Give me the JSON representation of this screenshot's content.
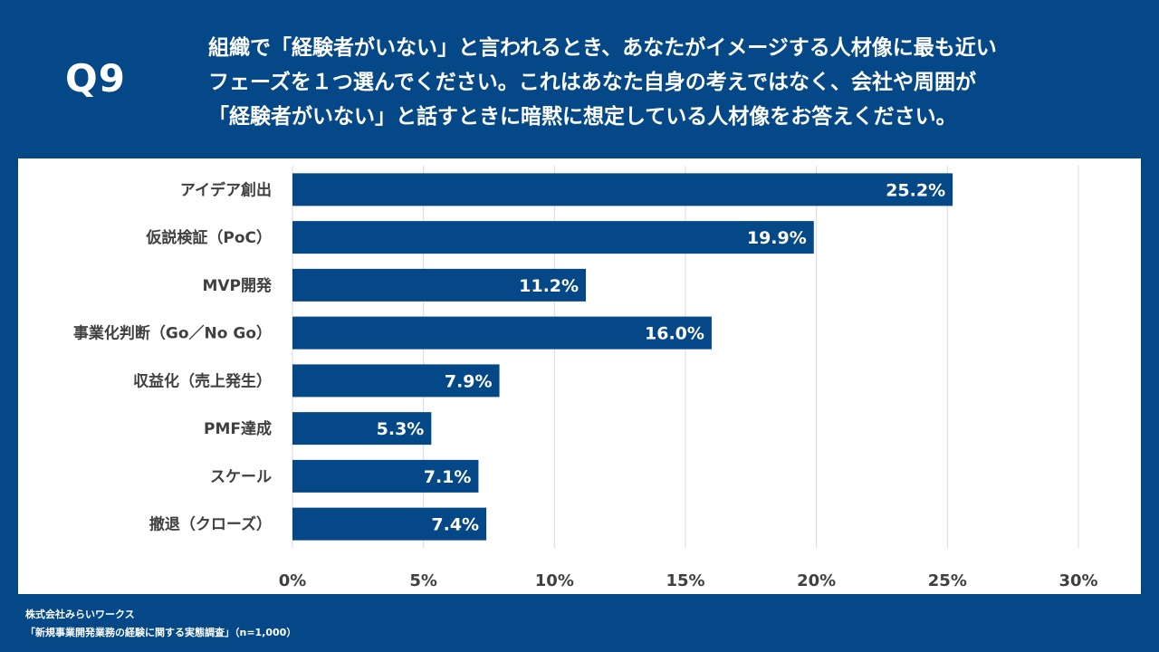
{
  "header": {
    "question_label": "Q9",
    "question_lines": [
      "組織で「経験者がいない」と言われるとき、あなたがイメージする人材像に最も近い",
      "フェーズを１つ選んでください。これはあなた自身の考えではなく、会社や周囲が",
      "「経験者がいない」と話すときに暗黙に想定している人材像をお答えください。"
    ]
  },
  "colors": {
    "background": "#044887",
    "bar": "#044887",
    "panel": "#ffffff",
    "gridline": "#d9d9d9",
    "axis_text": "#404040",
    "bar_label": "#ffffff"
  },
  "footer": {
    "company": "株式会社みらいワークス",
    "survey": "「新規事業開発業務の経験に関する実態調査」（n=1,000）"
  },
  "chart_data": {
    "type": "bar",
    "orientation": "horizontal",
    "categories": [
      "アイデア創出",
      "仮説検証（PoC）",
      "MVP開発",
      "事業化判断（Go／No Go）",
      "収益化（売上発生）",
      "PMF達成",
      "スケール",
      "撤退（クローズ）"
    ],
    "values": [
      25.2,
      19.9,
      11.2,
      16.0,
      7.9,
      5.3,
      7.1,
      7.4
    ],
    "value_labels": [
      "25.2%",
      "19.9%",
      "11.2%",
      "16.0%",
      "7.9%",
      "5.3%",
      "7.1%",
      "7.4%"
    ],
    "xlim": [
      0,
      30
    ],
    "xticks": [
      0,
      5,
      10,
      15,
      20,
      25,
      30
    ],
    "xtick_labels": [
      "0%",
      "5%",
      "10%",
      "15%",
      "20%",
      "25%",
      "30%"
    ],
    "grid": true,
    "legend": "none"
  }
}
